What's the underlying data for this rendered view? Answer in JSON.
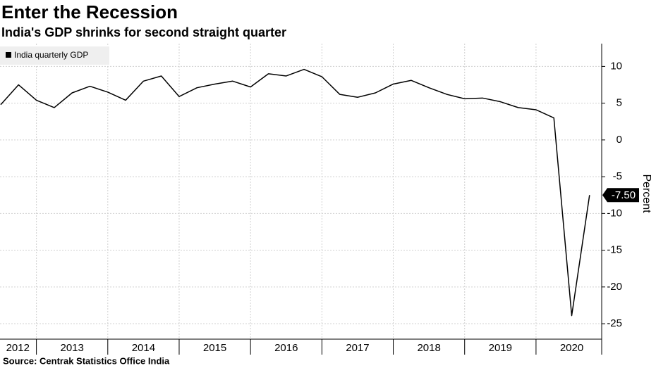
{
  "chart_data": {
    "type": "line",
    "title": "Enter the Recession",
    "subtitle": "India's GDP shrinks for second straight quarter",
    "source": "Source: Centrak Statistics Office India",
    "y_label": "Percent",
    "series": [
      {
        "name": "India quarterly GDP",
        "color": "#000000",
        "x": [
          2012.5,
          2012.75,
          2013,
          2013.25,
          2013.5,
          2013.75,
          2014,
          2014.25,
          2014.5,
          2014.75,
          2015,
          2015.25,
          2015.5,
          2015.75,
          2016,
          2016.25,
          2016.5,
          2016.75,
          2017,
          2017.25,
          2017.5,
          2017.75,
          2018,
          2018.25,
          2018.5,
          2018.75,
          2019,
          2019.25,
          2019.5,
          2019.75,
          2020,
          2020.25,
          2020.5,
          2020.75
        ],
        "values": [
          4.8,
          7.5,
          5.4,
          4.4,
          6.4,
          7.3,
          6.5,
          5.4,
          8.0,
          8.7,
          5.9,
          7.1,
          7.6,
          8.0,
          7.2,
          9.0,
          8.7,
          9.6,
          8.6,
          6.2,
          5.8,
          6.4,
          7.6,
          8.1,
          7.1,
          6.2,
          5.6,
          5.7,
          5.2,
          4.4,
          4.1,
          3.0,
          -23.9,
          -7.5
        ],
        "value_labels": [
          null,
          null,
          null,
          null,
          null,
          null,
          null,
          null,
          null,
          null,
          null,
          null,
          null,
          null,
          null,
          null,
          null,
          null,
          null,
          null,
          null,
          null,
          null,
          null,
          null,
          null,
          null,
          null,
          null,
          null,
          null,
          null,
          null,
          "-7.50"
        ]
      }
    ],
    "xlim": [
      2012.49,
      2020.92
    ],
    "xticks": [
      {
        "value": 2012.74,
        "label": "2012"
      },
      {
        "value": 2013.5,
        "label": "2013"
      },
      {
        "value": 2014.5,
        "label": "2014"
      },
      {
        "value": 2015.5,
        "label": "2015"
      },
      {
        "value": 2016.5,
        "label": "2016"
      },
      {
        "value": 2017.5,
        "label": "2017"
      },
      {
        "value": 2018.5,
        "label": "2018"
      },
      {
        "value": 2019.5,
        "label": "2019"
      },
      {
        "value": 2020.5,
        "label": "2020"
      }
    ],
    "xgrid": [
      2013,
      2014,
      2015,
      2016,
      2017,
      2018,
      2019,
      2020
    ],
    "ylim": [
      -27.1,
      13.1
    ],
    "yticks": [
      10,
      5,
      0,
      -5,
      -10,
      -15,
      -20,
      -25
    ],
    "grid": true
  }
}
